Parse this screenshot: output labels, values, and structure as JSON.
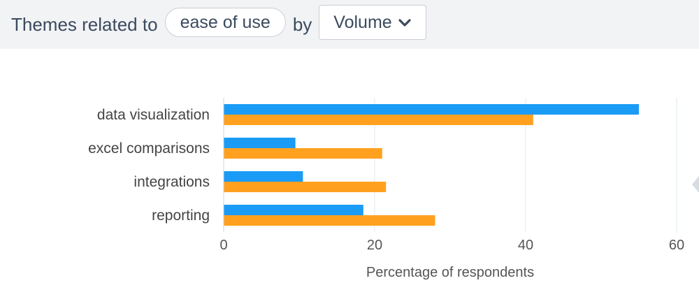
{
  "header": {
    "prefix_text": "Themes related to",
    "topic_pill": "ease of use",
    "by_text": "by",
    "sort_dropdown": {
      "selected": "Volume",
      "icon": "chevron-down-icon"
    }
  },
  "chart_data": {
    "type": "bar",
    "orientation": "horizontal",
    "categories": [
      "data visualization",
      "excel comparisons",
      "integrations",
      "reporting"
    ],
    "series": [
      {
        "color": "#1a9bf5",
        "values": [
          55,
          9.5,
          10.5,
          18.5
        ]
      },
      {
        "color": "#ffa11f",
        "values": [
          41,
          21,
          21.5,
          28
        ]
      }
    ],
    "xlabel": "Percentage of respondents",
    "xlim": [
      0,
      60
    ],
    "xticks": [
      "0",
      "20",
      "40",
      "60"
    ],
    "grid": true,
    "legend": "none"
  },
  "colors": {
    "header_bg": "#f2f3f5",
    "header_text": "#3a4a5e",
    "grid": "#dde8f2",
    "axis_text": "#555555"
  }
}
